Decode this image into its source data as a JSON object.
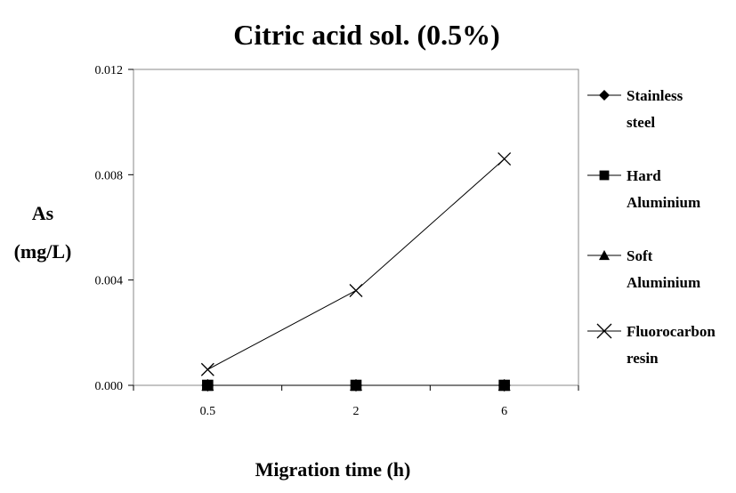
{
  "chart_data": {
    "type": "line",
    "title": "Citric acid sol. (0.5%)",
    "xlabel": "Migration time (h)",
    "ylabel_lines": [
      "As",
      "(mg/L)"
    ],
    "categories": [
      "0.5",
      "2",
      "6"
    ],
    "y_ticks": [
      "0.000",
      "0.004",
      "0.008",
      "0.012"
    ],
    "ylim": [
      0,
      0.012
    ],
    "legend_position": "right",
    "grid": false,
    "series": [
      {
        "name_lines": [
          "Stainless",
          "steel"
        ],
        "marker": "diamond",
        "color": "#000000",
        "values": [
          0,
          0,
          0
        ]
      },
      {
        "name_lines": [
          "Hard",
          "Aluminium"
        ],
        "marker": "square",
        "color": "#000000",
        "values": [
          0,
          0,
          0
        ]
      },
      {
        "name_lines": [
          "Soft",
          "Aluminium"
        ],
        "marker": "triangle",
        "color": "#000000",
        "values": [
          0,
          0,
          0
        ]
      },
      {
        "name_lines": [
          "Fluorocarbon",
          "resin"
        ],
        "marker": "cross",
        "color": "#000000",
        "values": [
          0.0006,
          0.0036,
          0.0086
        ]
      }
    ]
  }
}
